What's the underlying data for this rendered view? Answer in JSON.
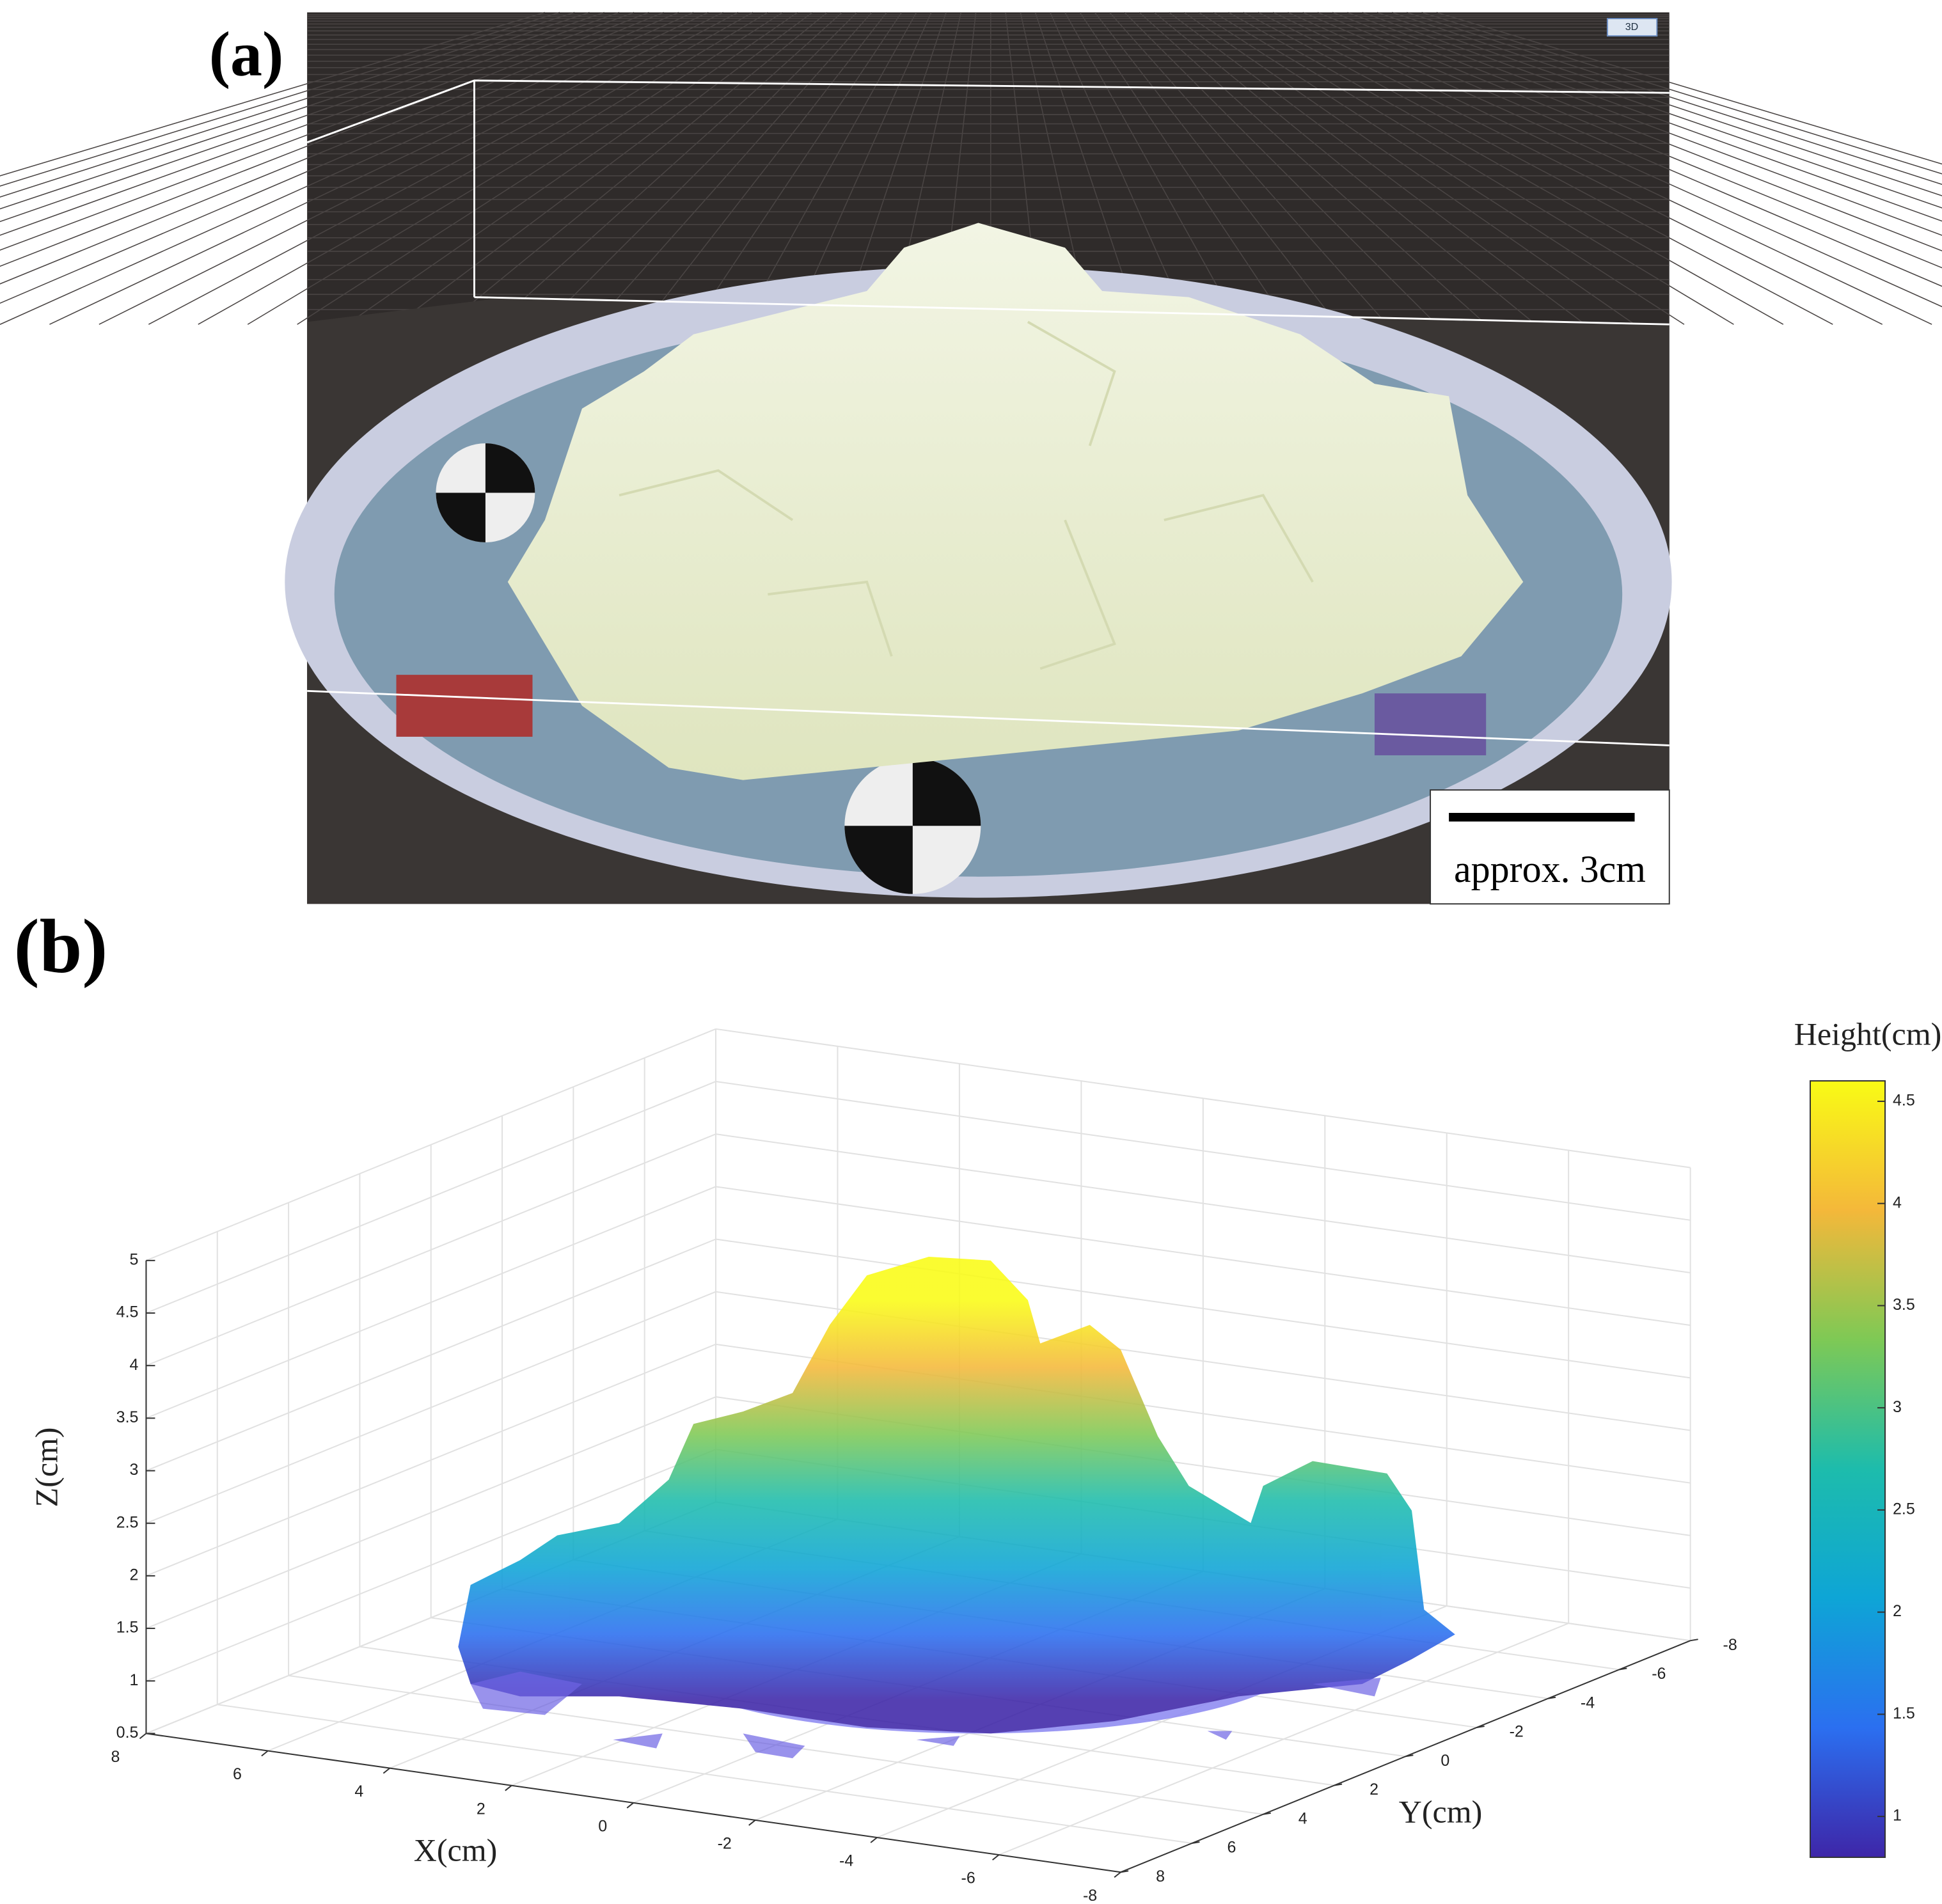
{
  "panel_a": {
    "label": "(a)",
    "view_badge": "3D",
    "scale_bar_label": "approx. 3cm"
  },
  "chart_data": {
    "type": "surface",
    "panel_label": "(b)",
    "xlabel": "X(cm)",
    "ylabel": "Y(cm)",
    "zlabel": "Z(cm)",
    "xlim": [
      -8,
      8
    ],
    "xticks": [
      8,
      6,
      4,
      2,
      0,
      -2,
      -4,
      -6,
      -8
    ],
    "ylim": [
      -8,
      8
    ],
    "yticks": [
      -8,
      -6,
      -4,
      -2,
      0,
      2,
      4,
      6,
      8
    ],
    "zlim": [
      0.5,
      5
    ],
    "zticks": [
      0.5,
      1,
      1.5,
      2,
      2.5,
      3,
      3.5,
      4,
      4.5,
      5
    ],
    "grid": true,
    "colorbar": {
      "label": "Height(cm)",
      "lim": [
        0.8,
        4.6
      ],
      "ticks": [
        1,
        1.5,
        2,
        2.5,
        3,
        3.5,
        4,
        4.5
      ]
    },
    "colormap": [
      "#3e26a8",
      "#2b6ff0",
      "#0ea5d6",
      "#1dbcac",
      "#7ec955",
      "#f4b83a",
      "#f9fb15"
    ]
  }
}
